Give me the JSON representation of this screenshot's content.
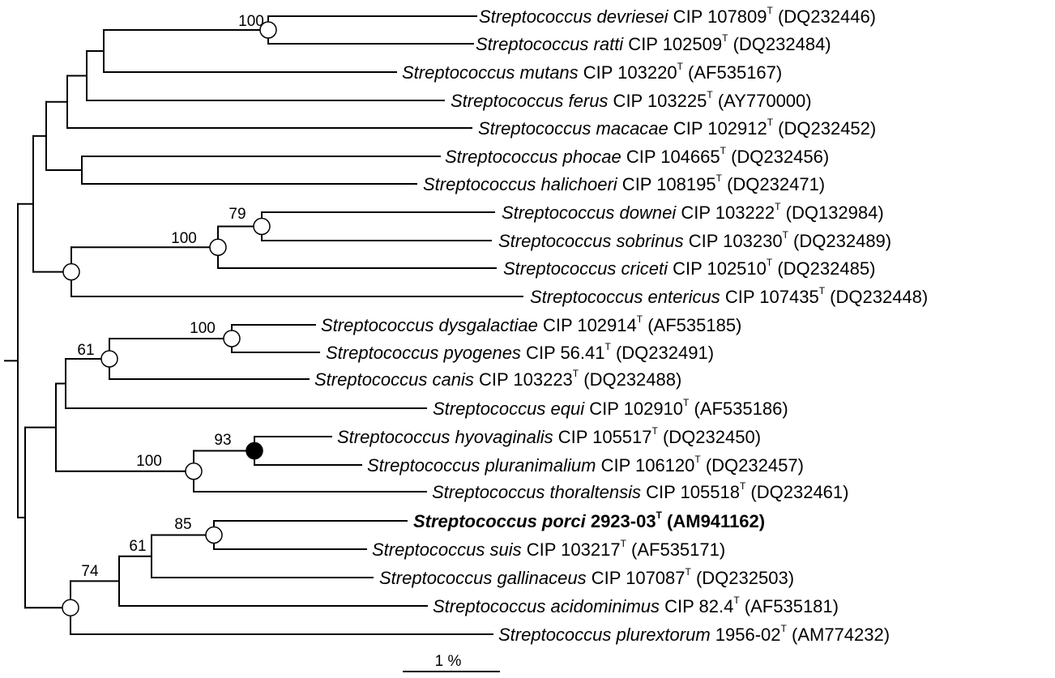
{
  "taxa": [
    {
      "genus": "Streptococcus",
      "species": "devriesei",
      "strain": "CIP 107809",
      "sup": "T",
      "accession": "(DQ232446)",
      "bold": false
    },
    {
      "genus": "Streptococcus",
      "species": "ratti",
      "strain": "CIP 102509",
      "sup": "T",
      "accession": "(DQ232484)",
      "bold": false
    },
    {
      "genus": "Streptococcus",
      "species": "mutans",
      "strain": "CIP 103220",
      "sup": "T",
      "accession": "(AF535167)",
      "bold": false
    },
    {
      "genus": "Streptococcus",
      "species": "ferus",
      "strain": "CIP 103225",
      "sup": "T",
      "accession": "(AY770000)",
      "bold": false
    },
    {
      "genus": "Streptococcus",
      "species": "macacae",
      "strain": "CIP 102912",
      "sup": "T",
      "accession": "(DQ232452)",
      "bold": false
    },
    {
      "genus": "Streptococcus",
      "species": "phocae",
      "strain": "CIP 104665",
      "sup": "T",
      "accession": "(DQ232456)",
      "bold": false
    },
    {
      "genus": "Streptococcus",
      "species": "halichoeri",
      "strain": "CIP 108195",
      "sup": "T",
      "accession": "(DQ232471)",
      "bold": false
    },
    {
      "genus": "Streptococcus",
      "species": "downei",
      "strain": "CIP 103222",
      "sup": "T",
      "accession": "(DQ132984)",
      "bold": false
    },
    {
      "genus": "Streptococcus",
      "species": "sobrinus",
      "strain": "CIP 103230",
      "sup": "T",
      "accession": "(DQ232489)",
      "bold": false
    },
    {
      "genus": "Streptococcus",
      "species": "criceti",
      "strain": "CIP 102510",
      "sup": "T",
      "accession": "(DQ232485)",
      "bold": false
    },
    {
      "genus": "Streptococcus",
      "species": "entericus",
      "strain": "CIP 107435",
      "sup": "T",
      "accession": "(DQ232448)",
      "bold": false
    },
    {
      "genus": "Streptococcus",
      "species": "dysgalactiae",
      "strain": "CIP 102914",
      "sup": "T",
      "accession": "(AF535185)",
      "bold": false
    },
    {
      "genus": "Streptococcus",
      "species": "pyogenes",
      "strain": "CIP 56.41",
      "sup": "T",
      "accession": "(DQ232491)",
      "bold": false
    },
    {
      "genus": "Streptococcus",
      "species": "canis",
      "strain": "CIP 103223",
      "sup": "T",
      "accession": "(DQ232488)",
      "bold": false
    },
    {
      "genus": "Streptococcus",
      "species": "equi",
      "strain": "CIP 102910",
      "sup": "T",
      "accession": "(AF535186)",
      "bold": false
    },
    {
      "genus": "Streptococcus",
      "species": "hyovaginalis",
      "strain": "CIP 105517",
      "sup": "T",
      "accession": "(DQ232450)",
      "bold": false
    },
    {
      "genus": "Streptococcus",
      "species": "pluranimalium",
      "strain": "CIP 106120",
      "sup": "T",
      "accession": "(DQ232457)",
      "bold": false
    },
    {
      "genus": "Streptococcus",
      "species": "thoraltensis",
      "strain": "CIP 105518",
      "sup": "T",
      "accession": "(DQ232461)",
      "bold": false
    },
    {
      "genus": "Streptococcus",
      "species": "porci",
      "strain": "2923-03",
      "sup": "T",
      "accession": "(AM941162)",
      "bold": true
    },
    {
      "genus": "Streptococcus",
      "species": "suis",
      "strain": "CIP 103217",
      "sup": "T",
      "accession": "(AF535171)",
      "bold": false
    },
    {
      "genus": "Streptococcus",
      "species": "gallinaceus",
      "strain": "CIP 107087",
      "sup": "T",
      "accession": "(DQ232503)",
      "bold": false
    },
    {
      "genus": "Streptococcus",
      "species": "acidominimus",
      "strain": "CIP 82.4",
      "sup": "T",
      "accession": "(AF535181)",
      "bold": false
    },
    {
      "genus": "Streptococcus",
      "species": "plurextorum",
      "strain": "1956-02",
      "sup": "T",
      "accession": "(AM774232)",
      "bold": false
    }
  ],
  "support_values": [
    "100",
    "79",
    "100",
    "100",
    "61",
    "93",
    "100",
    "85",
    "61",
    "74"
  ],
  "scale_bar": {
    "label": "1 %"
  }
}
